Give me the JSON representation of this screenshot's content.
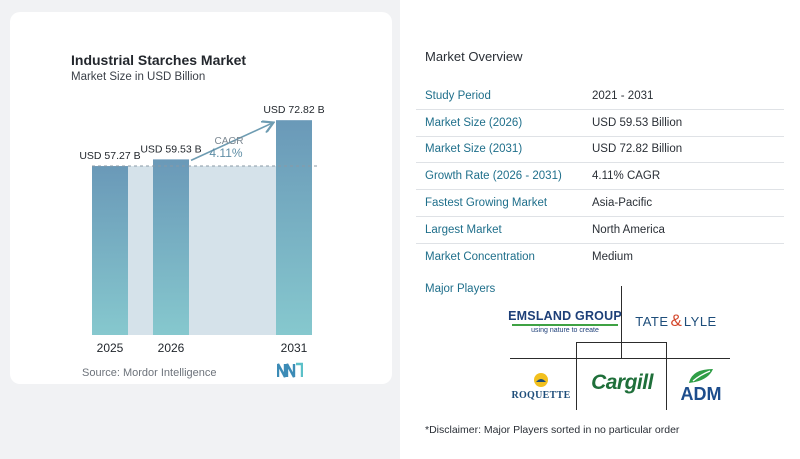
{
  "chart": {
    "title": "Industrial Starches Market",
    "subtitle": "Market Size in USD Billion",
    "source": "Source:  Mordor Intelligence",
    "cagr_label": "CAGR",
    "cagr_value": "4.11%"
  },
  "chart_data": {
    "type": "bar",
    "categories": [
      "2025",
      "2026",
      "2031"
    ],
    "values": [
      57.27,
      59.53,
      72.82
    ],
    "data_labels": [
      "USD 57.27 B",
      "USD 59.53 B",
      "USD 72.82 B"
    ],
    "title": "Industrial Starches Market",
    "subtitle": "Market Size in USD Billion",
    "ylim": [
      0,
      80
    ],
    "grid": false,
    "colors": {
      "bar_top": "#6a99b8",
      "bar_bottom": "#86c8ce",
      "shade": "#d5e2ea",
      "arrow": "#6e9cb2"
    }
  },
  "overview": {
    "title": "Market Overview",
    "rows": [
      {
        "label": "Study Period",
        "value": "2021 - 2031"
      },
      {
        "label": "Market Size (2026)",
        "value": "USD 59.53 Billion"
      },
      {
        "label": "Market Size (2031)",
        "value": "USD 72.82 Billion"
      },
      {
        "label": "Growth Rate (2026 - 2031)",
        "value": "4.11% CAGR"
      },
      {
        "label": "Fastest Growing Market",
        "value": "Asia-Pacific"
      },
      {
        "label": "Largest Market",
        "value": "North America"
      },
      {
        "label": "Market Concentration",
        "value": "Medium"
      }
    ],
    "players_title": "Major Players",
    "players": {
      "emsland_name": "EMSLAND GROUP",
      "emsland_tagline": "using nature to create",
      "tate_a": "TATE",
      "tate_amp": "&",
      "tate_b": "LYLE",
      "roquette": "ROQUETTE",
      "cargill": "Cargill",
      "adm": "ADM"
    },
    "disclaimer": "*Disclaimer: Major Players sorted in no particular order"
  }
}
